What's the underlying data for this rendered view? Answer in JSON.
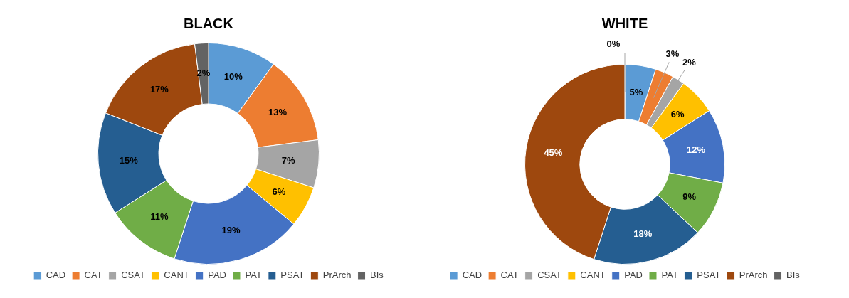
{
  "chart_data": [
    {
      "type": "donut",
      "title": "BLACK",
      "categories": [
        "CAD",
        "CAT",
        "CSAT",
        "CANT",
        "PAD",
        "PAT",
        "PSAT",
        "PrArch",
        "BIs"
      ],
      "values": [
        10,
        13,
        7,
        6,
        19,
        11,
        15,
        17,
        2
      ],
      "value_labels": [
        "10%",
        "13%",
        "7%",
        "6%",
        "19%",
        "11%",
        "15%",
        "17%",
        "2%"
      ],
      "colors": [
        "#5b9bd5",
        "#ed7d31",
        "#a5a5a5",
        "#ffc000",
        "#4472c4",
        "#70ad47",
        "#255e91",
        "#9e480e",
        "#636363"
      ],
      "legend": "bottom"
    },
    {
      "type": "donut",
      "title": "WHITE",
      "categories": [
        "CAD",
        "CAT",
        "CSAT",
        "CANT",
        "PAD",
        "PAT",
        "PSAT",
        "PrArch",
        "BIs"
      ],
      "values": [
        5,
        3,
        2,
        6,
        12,
        9,
        18,
        45,
        0
      ],
      "value_labels": [
        "5%",
        "3%",
        "2%",
        "6%",
        "12%",
        "9%",
        "18%",
        "45%",
        "0%"
      ],
      "colors": [
        "#5b9bd5",
        "#ed7d31",
        "#a5a5a5",
        "#ffc000",
        "#4472c4",
        "#70ad47",
        "#255e91",
        "#9e480e",
        "#636363"
      ],
      "legend": "bottom"
    }
  ]
}
